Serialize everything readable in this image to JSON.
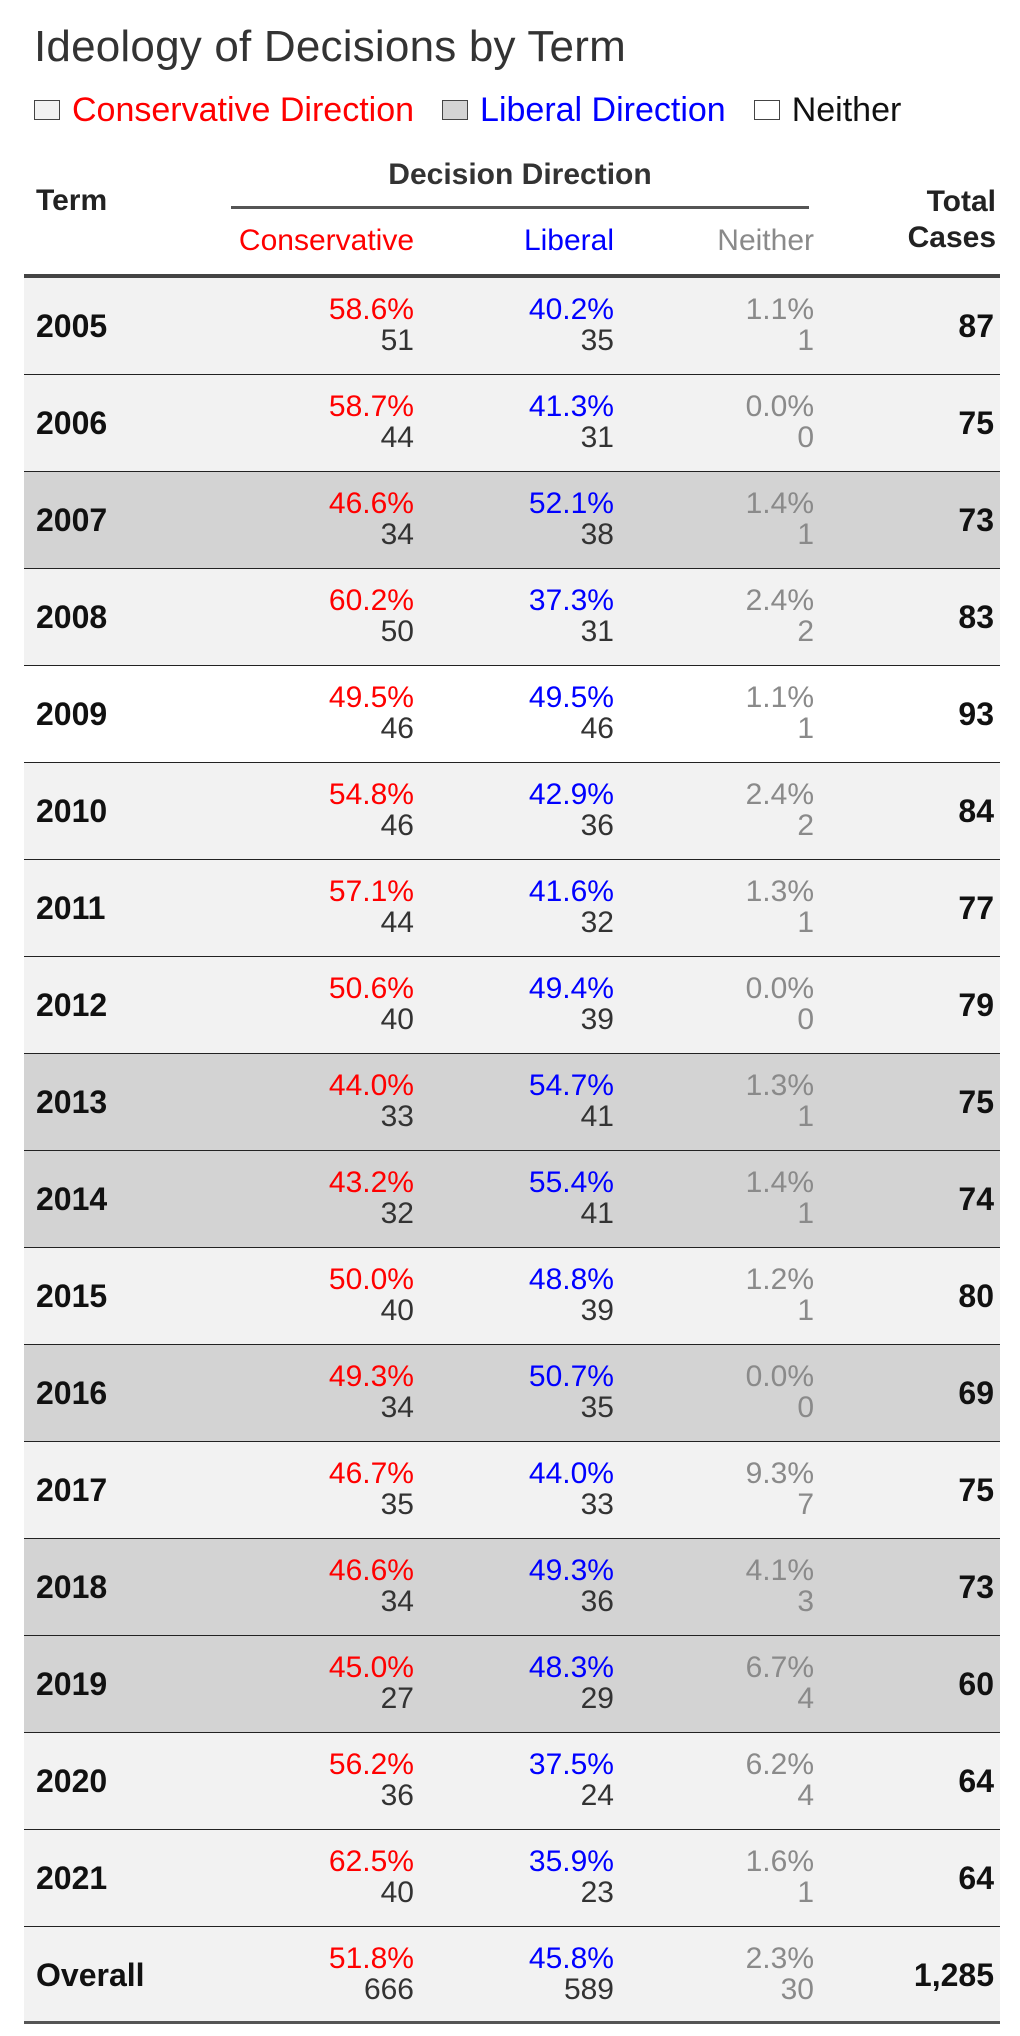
{
  "title": "Ideology of Decisions by Term",
  "colors": {
    "conservative": "#ff0000",
    "liberal": "#0000ff",
    "neither": "#8a8a8a",
    "row_conservative": "#f2f2f2",
    "row_liberal": "#d3d3d3",
    "row_neither": "#ffffff"
  },
  "legend": [
    {
      "label": "Conservative Direction",
      "color": "#ff0000",
      "swatch": "#f2f2f2"
    },
    {
      "label": "Liberal Direction",
      "color": "#0000ff",
      "swatch": "#d3d3d3"
    },
    {
      "label": "Neither",
      "color": "#111111",
      "swatch": "#ffffff"
    }
  ],
  "header": {
    "term": "Term",
    "group": "Decision Direction",
    "conservative": "Conservative",
    "liberal": "Liberal",
    "neither": "Neither",
    "total_line1": "Total",
    "total_line2": "Cases"
  },
  "rows": [
    {
      "term": "2005",
      "shade": "conservative",
      "cons_pct": "58.6%",
      "cons_n": "51",
      "lib_pct": "40.2%",
      "lib_n": "35",
      "nei_pct": "1.1%",
      "nei_n": "1",
      "total": "87"
    },
    {
      "term": "2006",
      "shade": "conservative",
      "cons_pct": "58.7%",
      "cons_n": "44",
      "lib_pct": "41.3%",
      "lib_n": "31",
      "nei_pct": "0.0%",
      "nei_n": "0",
      "total": "75"
    },
    {
      "term": "2007",
      "shade": "liberal",
      "cons_pct": "46.6%",
      "cons_n": "34",
      "lib_pct": "52.1%",
      "lib_n": "38",
      "nei_pct": "1.4%",
      "nei_n": "1",
      "total": "73"
    },
    {
      "term": "2008",
      "shade": "conservative",
      "cons_pct": "60.2%",
      "cons_n": "50",
      "lib_pct": "37.3%",
      "lib_n": "31",
      "nei_pct": "2.4%",
      "nei_n": "2",
      "total": "83"
    },
    {
      "term": "2009",
      "shade": "neither",
      "cons_pct": "49.5%",
      "cons_n": "46",
      "lib_pct": "49.5%",
      "lib_n": "46",
      "nei_pct": "1.1%",
      "nei_n": "1",
      "total": "93"
    },
    {
      "term": "2010",
      "shade": "conservative",
      "cons_pct": "54.8%",
      "cons_n": "46",
      "lib_pct": "42.9%",
      "lib_n": "36",
      "nei_pct": "2.4%",
      "nei_n": "2",
      "total": "84"
    },
    {
      "term": "2011",
      "shade": "conservative",
      "cons_pct": "57.1%",
      "cons_n": "44",
      "lib_pct": "41.6%",
      "lib_n": "32",
      "nei_pct": "1.3%",
      "nei_n": "1",
      "total": "77"
    },
    {
      "term": "2012",
      "shade": "conservative",
      "cons_pct": "50.6%",
      "cons_n": "40",
      "lib_pct": "49.4%",
      "lib_n": "39",
      "nei_pct": "0.0%",
      "nei_n": "0",
      "total": "79"
    },
    {
      "term": "2013",
      "shade": "liberal",
      "cons_pct": "44.0%",
      "cons_n": "33",
      "lib_pct": "54.7%",
      "lib_n": "41",
      "nei_pct": "1.3%",
      "nei_n": "1",
      "total": "75"
    },
    {
      "term": "2014",
      "shade": "liberal",
      "cons_pct": "43.2%",
      "cons_n": "32",
      "lib_pct": "55.4%",
      "lib_n": "41",
      "nei_pct": "1.4%",
      "nei_n": "1",
      "total": "74"
    },
    {
      "term": "2015",
      "shade": "conservative",
      "cons_pct": "50.0%",
      "cons_n": "40",
      "lib_pct": "48.8%",
      "lib_n": "39",
      "nei_pct": "1.2%",
      "nei_n": "1",
      "total": "80"
    },
    {
      "term": "2016",
      "shade": "liberal",
      "cons_pct": "49.3%",
      "cons_n": "34",
      "lib_pct": "50.7%",
      "lib_n": "35",
      "nei_pct": "0.0%",
      "nei_n": "0",
      "total": "69"
    },
    {
      "term": "2017",
      "shade": "conservative",
      "cons_pct": "46.7%",
      "cons_n": "35",
      "lib_pct": "44.0%",
      "lib_n": "33",
      "nei_pct": "9.3%",
      "nei_n": "7",
      "total": "75"
    },
    {
      "term": "2018",
      "shade": "liberal",
      "cons_pct": "46.6%",
      "cons_n": "34",
      "lib_pct": "49.3%",
      "lib_n": "36",
      "nei_pct": "4.1%",
      "nei_n": "3",
      "total": "73"
    },
    {
      "term": "2019",
      "shade": "liberal",
      "cons_pct": "45.0%",
      "cons_n": "27",
      "lib_pct": "48.3%",
      "lib_n": "29",
      "nei_pct": "6.7%",
      "nei_n": "4",
      "total": "60"
    },
    {
      "term": "2020",
      "shade": "conservative",
      "cons_pct": "56.2%",
      "cons_n": "36",
      "lib_pct": "37.5%",
      "lib_n": "24",
      "nei_pct": "6.2%",
      "nei_n": "4",
      "total": "64"
    },
    {
      "term": "2021",
      "shade": "conservative",
      "cons_pct": "62.5%",
      "cons_n": "40",
      "lib_pct": "35.9%",
      "lib_n": "23",
      "nei_pct": "1.6%",
      "nei_n": "1",
      "total": "64"
    },
    {
      "term": "Overall",
      "shade": "conservative",
      "cons_pct": "51.8%",
      "cons_n": "666",
      "lib_pct": "45.8%",
      "lib_n": "589",
      "nei_pct": "2.3%",
      "nei_n": "30",
      "total": "1,285"
    }
  ]
}
